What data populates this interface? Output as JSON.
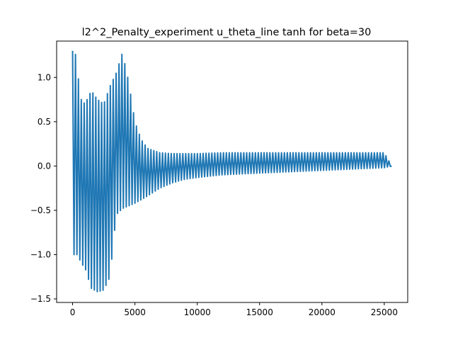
{
  "chart_data": {
    "type": "line",
    "title": "l2^2_Penalty_experiment u_theta_line tanh for beta=30",
    "xlabel": "",
    "ylabel": "",
    "xlim": [
      -1280,
      26880
    ],
    "ylim": [
      -1.54,
      1.41
    ],
    "x_ticks": [
      0,
      5000,
      10000,
      15000,
      20000,
      25000
    ],
    "x_tick_labels": [
      "0",
      "5000",
      "10000",
      "15000",
      "20000",
      "25000"
    ],
    "y_ticks": [
      -1.5,
      -1.0,
      -0.5,
      0.0,
      0.5,
      1.0
    ],
    "y_tick_labels": [
      "−1.5",
      "−1.0",
      "−0.5",
      "0.0",
      "0.5",
      "1.0"
    ],
    "grid": false,
    "legend": "none",
    "series": [
      {
        "color": "#1f77b4",
        "x_range": [
          0,
          25600
        ],
        "envelope": {
          "x": [
            0,
            200,
            400,
            700,
            1000,
            1500,
            2000,
            2500,
            3000,
            3500,
            4000,
            4500,
            5000,
            5500,
            6000,
            7000,
            8000,
            9000,
            10000,
            12000,
            15000,
            20000,
            25000,
            25600
          ],
          "upper": [
            1.3,
            1.3,
            1.05,
            0.75,
            0.7,
            0.85,
            0.75,
            0.7,
            0.9,
            1.05,
            1.28,
            0.95,
            0.5,
            0.3,
            0.2,
            0.15,
            0.14,
            0.14,
            0.14,
            0.15,
            0.15,
            0.15,
            0.15,
            0.0
          ],
          "lower": [
            -1.0,
            -1.0,
            -1.0,
            -1.1,
            -1.15,
            -1.38,
            -1.42,
            -1.4,
            -1.25,
            -0.55,
            -0.48,
            -0.45,
            -0.42,
            -0.38,
            -0.34,
            -0.25,
            -0.19,
            -0.15,
            -0.13,
            -0.1,
            -0.08,
            -0.05,
            -0.02,
            0.0
          ]
        },
        "cycles": 110
      }
    ]
  }
}
